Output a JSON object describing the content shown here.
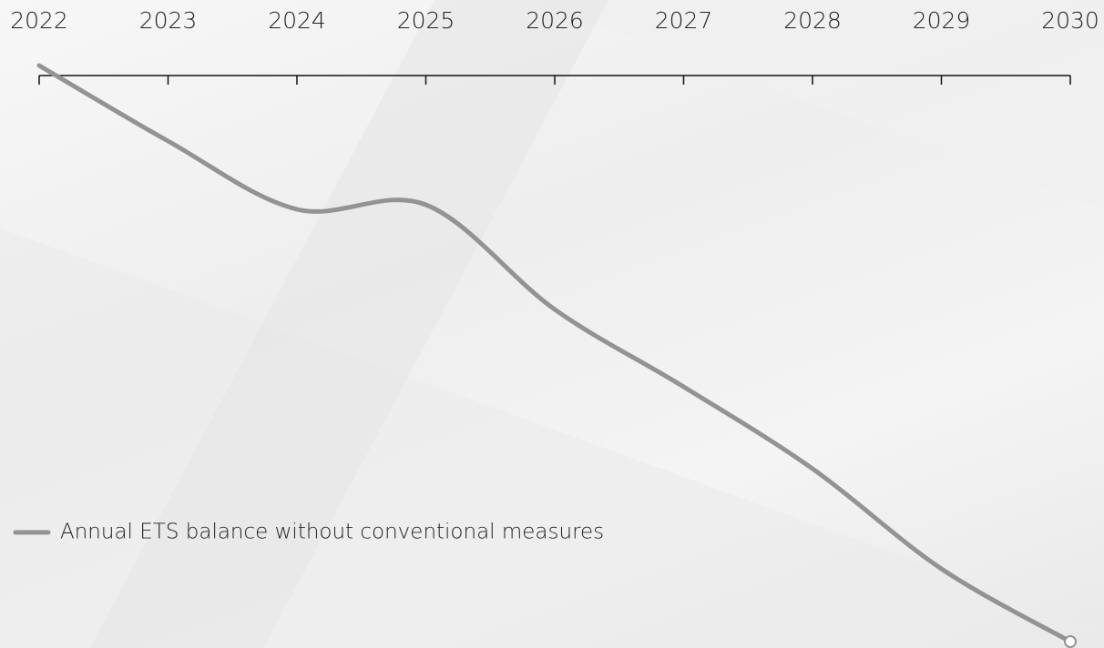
{
  "chart_data": {
    "type": "line",
    "x": [
      2022,
      2023,
      2024,
      2025,
      2026,
      2027,
      2028,
      2029,
      2030
    ],
    "series": [
      {
        "name": "Annual ETS balance without conventional measures",
        "color": "#939393",
        "values": [
          1.1,
          -7.2,
          -14.7,
          -14.2,
          -25.7,
          -34.2,
          -43.2,
          -54.2,
          -62.2
        ]
      }
    ],
    "xlim": [
      2022,
      2030
    ],
    "xticks": [
      2022,
      2023,
      2024,
      2025,
      2026,
      2027,
      2028,
      2029,
      2030
    ],
    "ylim": [
      -64,
      0
    ],
    "x_axis_position": "top",
    "end_marker": true,
    "legend": "bottom-left"
  }
}
